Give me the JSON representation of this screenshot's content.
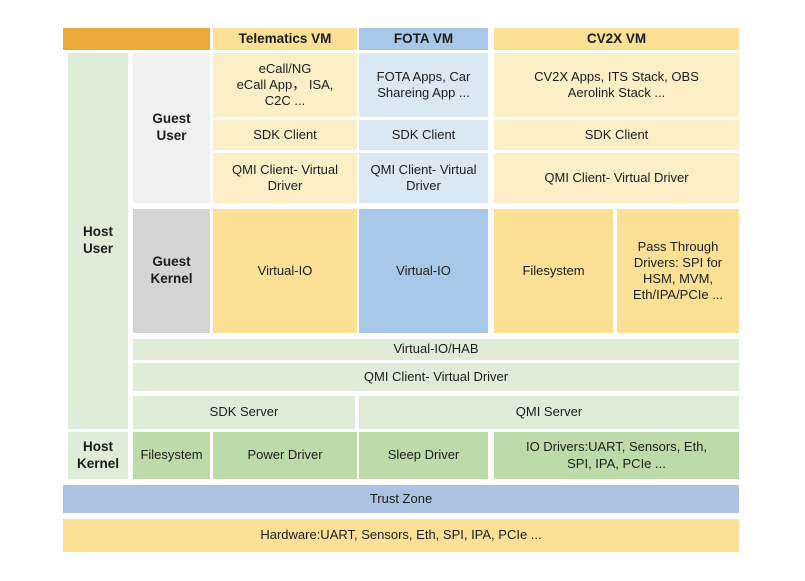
{
  "title": "Hypervisor VM software architecture diagram",
  "colors": {
    "orange_header": "#EBA93B",
    "yellow": "#FBE096",
    "light_yellow": "#FCEFC8",
    "blue": "#A8C8E9",
    "light_blue": "#DAE8F4",
    "light_green": "#DFEDD8",
    "green": "#BDDBA9",
    "trust_zone_blue": "#ADC2E2",
    "guest_user_gray": "#F0F0F0",
    "guest_kernel_gray": "#D4D4D4",
    "text": "#1c1c1c",
    "background": "#ffffff"
  },
  "headers": {
    "telematics": "Telematics VM",
    "fota": "FOTA VM",
    "cv2x": "CV2X VM"
  },
  "labels": {
    "host_user": "Host\nUser",
    "guest_user": "Guest\nUser",
    "guest_kernel": "Guest\nKernel",
    "host_kernel": "Host\nKernel"
  },
  "guest_user": {
    "apps": {
      "telematics": "eCall/NG\neCall App， ISA,\nC2C ...",
      "fota": "FOTA Apps, Car\nShareing App ...",
      "cv2x": "CV2X Apps, ITS Stack, OBS\nAerolink Stack ..."
    },
    "sdk_client": {
      "telematics": "SDK Client",
      "fota": "SDK Client",
      "cv2x": "SDK Client"
    },
    "qmi_client": {
      "telematics": "QMI Client- Virtual\nDriver",
      "fota": "QMI Client- Virtual\nDriver",
      "cv2x": "QMI Client- Virtual Driver"
    }
  },
  "guest_kernel": {
    "telematics_virtual_io": "Virtual-IO",
    "fota_virtual_io": "Virtual-IO",
    "cv2x_filesystem": "Filesystem",
    "cv2x_passthrough": "Pass Through\nDrivers: SPI for\nHSM, MVM,\nEth/IPA/PCIe ..."
  },
  "host_user": {
    "virtual_io_hab": "Virtual-IO/HAB",
    "qmi_client_virtual_driver": "QMI Client- Virtual Driver",
    "sdk_server": "SDK Server",
    "qmi_server": "QMI Server"
  },
  "host_kernel": {
    "filesystem": "Filesystem",
    "power_driver": "Power Driver",
    "sleep_driver": "Sleep Driver",
    "io_drivers": "IO Drivers:UART, Sensors, Eth,\nSPI, IPA, PCIe ..."
  },
  "trust_zone": "Trust Zone",
  "hardware": "Hardware:UART, Sensors, Eth, SPI, IPA, PCIe ..."
}
